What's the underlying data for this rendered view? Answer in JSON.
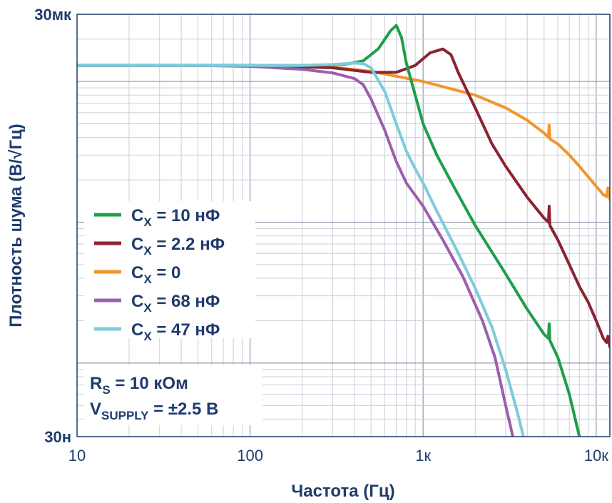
{
  "chart_data": {
    "type": "line",
    "xscale": "log",
    "yscale": "log",
    "xlabel": "Частота (Гц)",
    "ylabel": "Плотность шума (В/√Гц)",
    "xlim": [
      10,
      12000
    ],
    "ylim": [
      3e-08,
      3e-05
    ],
    "x_ticks": [
      {
        "value": 10,
        "label": "10"
      },
      {
        "value": 100,
        "label": "100"
      },
      {
        "value": 1000,
        "label": "1к"
      },
      {
        "value": 10000,
        "label": "10к"
      }
    ],
    "y_ticks": [
      {
        "value": 3e-05,
        "label": "30мк"
      },
      {
        "value": 3e-08,
        "label": "30н"
      }
    ],
    "grid": true,
    "legend_position": "left",
    "series": [
      {
        "name": "C",
        "name_sub": "X",
        "name_suffix": " = 10 нФ",
        "color": "#1f9e4b",
        "points": [
          [
            10,
            1.3e-05
          ],
          [
            100,
            1.3e-05
          ],
          [
            200,
            1.3e-05
          ],
          [
            350,
            1.32e-05
          ],
          [
            450,
            1.4e-05
          ],
          [
            550,
            1.7e-05
          ],
          [
            650,
            2.3e-05
          ],
          [
            700,
            2.5e-05
          ],
          [
            750,
            2.05e-05
          ],
          [
            800,
            1.35e-05
          ],
          [
            900,
            8e-06
          ],
          [
            1000,
            5e-06
          ],
          [
            1200,
            3e-06
          ],
          [
            1500,
            1.8e-06
          ],
          [
            2000,
            9.5e-07
          ],
          [
            3000,
            4.3e-07
          ],
          [
            4000,
            2.4e-07
          ],
          [
            5000,
            1.6e-07
          ],
          [
            5300,
            1.5e-07
          ],
          [
            5350,
            1.9e-07
          ],
          [
            5400,
            1.45e-07
          ],
          [
            6000,
            1.1e-07
          ],
          [
            7000,
            6e-08
          ],
          [
            8000,
            3e-08
          ]
        ]
      },
      {
        "name": "C",
        "name_sub": "X",
        "name_suffix": " = 2.2 нФ",
        "color": "#8b2332",
        "points": [
          [
            10,
            1.3e-05
          ],
          [
            100,
            1.3e-05
          ],
          [
            300,
            1.25e-05
          ],
          [
            500,
            1.16e-05
          ],
          [
            700,
            1.16e-05
          ],
          [
            900,
            1.3e-05
          ],
          [
            1100,
            1.6e-05
          ],
          [
            1300,
            1.7e-05
          ],
          [
            1450,
            1.55e-05
          ],
          [
            1600,
            1.15e-05
          ],
          [
            2000,
            6.5e-06
          ],
          [
            2500,
            3.6e-06
          ],
          [
            3000,
            2.5e-06
          ],
          [
            4000,
            1.5e-06
          ],
          [
            5000,
            1.07e-06
          ],
          [
            5300,
            1e-06
          ],
          [
            5350,
            1.3e-06
          ],
          [
            5400,
            9.5e-07
          ],
          [
            6000,
            7.5e-07
          ],
          [
            7000,
            5e-07
          ],
          [
            8000,
            3.5e-07
          ],
          [
            9000,
            2.7e-07
          ],
          [
            10000,
            2e-07
          ],
          [
            11000,
            1.5e-07
          ],
          [
            11500,
            1.4e-07
          ],
          [
            11700,
            1.55e-07
          ],
          [
            12000,
            1.3e-07
          ]
        ]
      },
      {
        "name": "C",
        "name_sub": "X",
        "name_suffix": " = 0",
        "color": "#f0962e",
        "points": [
          [
            10,
            1.3e-05
          ],
          [
            100,
            1.3e-05
          ],
          [
            300,
            1.26e-05
          ],
          [
            500,
            1.18e-05
          ],
          [
            1000,
            1e-05
          ],
          [
            2000,
            8e-06
          ],
          [
            3000,
            6.5e-06
          ],
          [
            4000,
            5.3e-06
          ],
          [
            5000,
            4.3e-06
          ],
          [
            5300,
            4e-06
          ],
          [
            5350,
            4.9e-06
          ],
          [
            5400,
            3.9e-06
          ],
          [
            6000,
            3.6e-06
          ],
          [
            7000,
            3e-06
          ],
          [
            8000,
            2.5e-06
          ],
          [
            9000,
            2.1e-06
          ],
          [
            10000,
            1.8e-06
          ],
          [
            11000,
            1.57e-06
          ],
          [
            11500,
            1.52e-06
          ],
          [
            11700,
            1.75e-06
          ],
          [
            12000,
            1.45e-06
          ]
        ]
      },
      {
        "name": "C",
        "name_sub": "X",
        "name_suffix": " = 68 нФ",
        "color": "#9b5fad",
        "points": [
          [
            10,
            1.3e-05
          ],
          [
            50,
            1.3e-05
          ],
          [
            100,
            1.28e-05
          ],
          [
            200,
            1.22e-05
          ],
          [
            300,
            1.15e-05
          ],
          [
            400,
            1.05e-05
          ],
          [
            450,
            9.5e-06
          ],
          [
            500,
            7.5e-06
          ],
          [
            600,
            4.5e-06
          ],
          [
            700,
            2.7e-06
          ],
          [
            800,
            1.9e-06
          ],
          [
            1000,
            1.3e-06
          ],
          [
            1300,
            7.5e-07
          ],
          [
            1700,
            4.1e-07
          ],
          [
            2200,
            2e-07
          ],
          [
            2600,
            1.1e-07
          ],
          [
            3000,
            5e-08
          ],
          [
            3300,
            3e-08
          ]
        ]
      },
      {
        "name": "C",
        "name_sub": "X",
        "name_suffix": " = 47 нФ",
        "color": "#7ecbdc",
        "points": [
          [
            10,
            1.3e-05
          ],
          [
            100,
            1.3e-05
          ],
          [
            200,
            1.3e-05
          ],
          [
            300,
            1.32e-05
          ],
          [
            400,
            1.35e-05
          ],
          [
            450,
            1.34e-05
          ],
          [
            500,
            1.25e-05
          ],
          [
            600,
            8.5e-06
          ],
          [
            700,
            5e-06
          ],
          [
            800,
            3.2e-06
          ],
          [
            900,
            2.4e-06
          ],
          [
            1000,
            1.9e-06
          ],
          [
            1200,
            1.2e-06
          ],
          [
            1600,
            6e-07
          ],
          [
            2000,
            3.4e-07
          ],
          [
            2500,
            1.8e-07
          ],
          [
            3000,
            9e-08
          ],
          [
            3500,
            4.5e-08
          ],
          [
            3800,
            3e-08
          ]
        ]
      }
    ],
    "annotations": [
      {
        "main": "R",
        "sub": "S",
        "rest": " = 10 кОм"
      },
      {
        "main": "V",
        "sub": "SUPPLY",
        "rest": " = ±2.5 В"
      }
    ]
  }
}
